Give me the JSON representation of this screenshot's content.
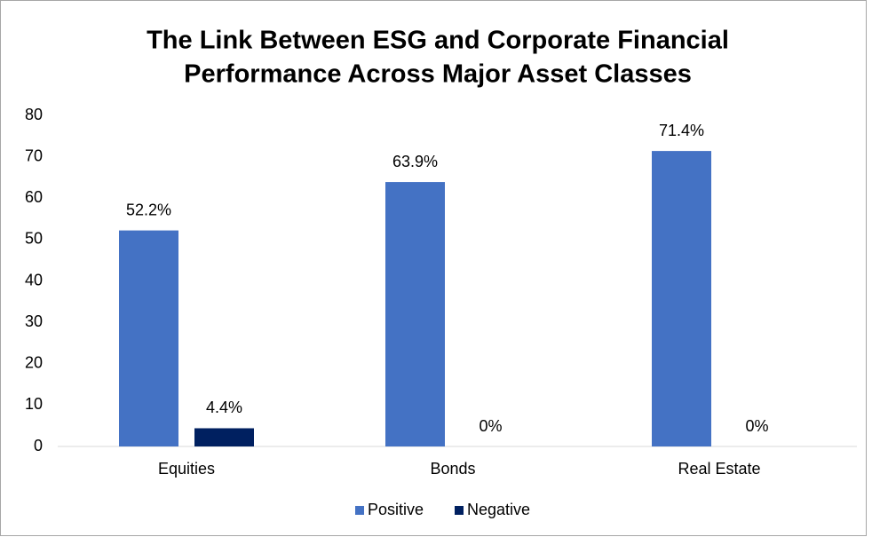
{
  "chart_data": {
    "type": "bar",
    "title": [
      "The Link Between ESG and Corporate Financial",
      "Performance Across Major Asset Classes"
    ],
    "categories": [
      "Equities",
      "Bonds",
      "Real Estate"
    ],
    "series": [
      {
        "name": "Positive",
        "color": "#4472c4",
        "values": [
          52.2,
          63.9,
          71.4
        ],
        "value_labels": [
          "52.2%",
          "63.9%",
          "71.4%"
        ]
      },
      {
        "name": "Negative",
        "color": "#002060",
        "values": [
          4.4,
          0,
          0
        ],
        "value_labels": [
          "4.4%",
          "0%",
          "0%"
        ]
      }
    ],
    "ylim": [
      0,
      80
    ],
    "yticks": [
      0,
      10,
      20,
      30,
      40,
      50,
      60,
      70,
      80
    ],
    "grid": false,
    "legend": "bottom"
  }
}
